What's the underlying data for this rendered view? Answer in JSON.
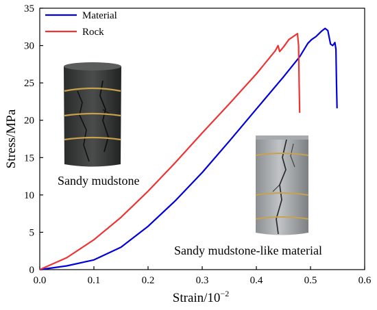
{
  "chart_data": {
    "type": "line",
    "xlabel": "Strain/10",
    "xlabel_exponent": "−2",
    "ylabel": "Stress/MPa",
    "xlim": [
      0,
      0.6
    ],
    "ylim": [
      0,
      35
    ],
    "xticks": [
      "0.0",
      "0.1",
      "0.2",
      "0.3",
      "0.4",
      "0.5",
      "0.6"
    ],
    "yticks": [
      "0",
      "5",
      "10",
      "15",
      "20",
      "25",
      "30",
      "35"
    ],
    "grid": false,
    "legend_position": "top-left",
    "series": [
      {
        "name": "Material",
        "color": "#0000dd",
        "points": [
          [
            0,
            0
          ],
          [
            0.05,
            0.5
          ],
          [
            0.1,
            1.3
          ],
          [
            0.15,
            3.0
          ],
          [
            0.2,
            5.8
          ],
          [
            0.25,
            9.2
          ],
          [
            0.3,
            13.0
          ],
          [
            0.35,
            17.2
          ],
          [
            0.4,
            21.5
          ],
          [
            0.45,
            25.8
          ],
          [
            0.48,
            28.5
          ],
          [
            0.495,
            30.3
          ],
          [
            0.502,
            30.8
          ],
          [
            0.51,
            31.2
          ],
          [
            0.52,
            31.9
          ],
          [
            0.527,
            32.3
          ],
          [
            0.532,
            32.0
          ],
          [
            0.537,
            30.2
          ],
          [
            0.541,
            30.0
          ],
          [
            0.545,
            30.4
          ],
          [
            0.547,
            29.5
          ],
          [
            0.548,
            25.0
          ],
          [
            0.549,
            21.6
          ]
        ]
      },
      {
        "name": "Rock",
        "color": "#ee3333",
        "points": [
          [
            0,
            0
          ],
          [
            0.05,
            1.6
          ],
          [
            0.1,
            4.0
          ],
          [
            0.15,
            7.0
          ],
          [
            0.2,
            10.5
          ],
          [
            0.25,
            14.3
          ],
          [
            0.3,
            18.3
          ],
          [
            0.35,
            22.2
          ],
          [
            0.4,
            26.2
          ],
          [
            0.435,
            29.3
          ],
          [
            0.44,
            30.0
          ],
          [
            0.443,
            29.2
          ],
          [
            0.45,
            29.8
          ],
          [
            0.46,
            30.8
          ],
          [
            0.47,
            31.3
          ],
          [
            0.476,
            31.6
          ],
          [
            0.478,
            30.0
          ],
          [
            0.479,
            25.0
          ],
          [
            0.48,
            21.0
          ]
        ]
      }
    ],
    "annotations": [
      {
        "text": "Sandy mudstone",
        "at": [
          0.09,
          11.8
        ]
      },
      {
        "text": "Sandy mudstone-like material",
        "at": [
          0.41,
          2.3
        ]
      }
    ],
    "images": [
      {
        "name": "sandy-mudstone-sample-photo",
        "description_icon": "dark-gray-rock-core"
      },
      {
        "name": "material-sample-photo",
        "description_icon": "light-gray-core"
      }
    ]
  }
}
